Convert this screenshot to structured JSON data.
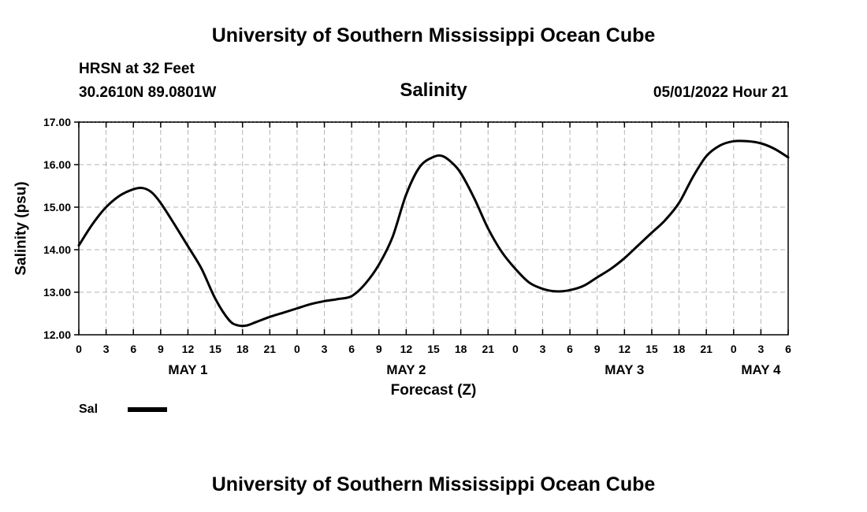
{
  "header": {
    "title": "University of Southern Mississippi Ocean Cube",
    "station": "HRSN at 32 Feet",
    "coords": "30.2610N  89.0801W",
    "datetime": "05/01/2022 Hour 21"
  },
  "footer": {
    "title": "University of Southern Mississippi Ocean Cube"
  },
  "chart_data": {
    "type": "line",
    "title": "Salinity",
    "xlabel": "Forecast (Z)",
    "ylabel": "Salinity (psu)",
    "ylim": [
      12.0,
      17.0
    ],
    "yticks": [
      "12.00",
      "13.00",
      "14.00",
      "15.00",
      "16.00",
      "17.00"
    ],
    "xlim_hours": [
      0,
      78
    ],
    "xtick_labels": [
      "0",
      "3",
      "6",
      "9",
      "12",
      "15",
      "18",
      "21",
      "0",
      "3",
      "6",
      "9",
      "12",
      "15",
      "18",
      "21",
      "0",
      "3",
      "6",
      "9",
      "12",
      "15",
      "18",
      "21",
      "0",
      "3",
      "6"
    ],
    "day_labels": [
      {
        "label": "MAY 1",
        "hour": 12
      },
      {
        "label": "MAY 2",
        "hour": 36
      },
      {
        "label": "MAY 3",
        "hour": 60
      },
      {
        "label": "MAY 4",
        "hour": 75
      }
    ],
    "grid": true,
    "legend": "bottom-left",
    "series": [
      {
        "name": "Sal",
        "color": "#000000",
        "x": [
          0,
          1.5,
          3,
          4.5,
          6,
          7,
          8,
          9,
          10.5,
          12,
          13.5,
          15,
          16.5,
          17.5,
          18.5,
          19.5,
          21,
          22.5,
          24,
          25.5,
          27,
          28.5,
          30,
          31.5,
          33,
          34.5,
          36,
          37.5,
          39,
          40,
          41,
          42,
          43.5,
          45,
          46.5,
          48,
          49.5,
          51,
          52.5,
          54,
          55.5,
          57,
          58.5,
          60,
          61.5,
          63,
          64.5,
          66,
          67.5,
          69,
          70.5,
          72,
          73.5,
          75,
          76.5,
          78
        ],
        "y": [
          14.1,
          14.6,
          15.0,
          15.27,
          15.42,
          15.45,
          15.35,
          15.1,
          14.6,
          14.08,
          13.55,
          12.85,
          12.35,
          12.22,
          12.22,
          12.3,
          12.42,
          12.52,
          12.62,
          12.72,
          12.79,
          12.84,
          12.91,
          13.2,
          13.65,
          14.3,
          15.3,
          15.95,
          16.18,
          16.2,
          16.05,
          15.8,
          15.2,
          14.5,
          13.95,
          13.55,
          13.23,
          13.08,
          13.02,
          13.05,
          13.15,
          13.35,
          13.55,
          13.8,
          14.1,
          14.4,
          14.7,
          15.1,
          15.7,
          16.2,
          16.45,
          16.55,
          16.55,
          16.5,
          16.37,
          16.17
        ]
      }
    ]
  }
}
